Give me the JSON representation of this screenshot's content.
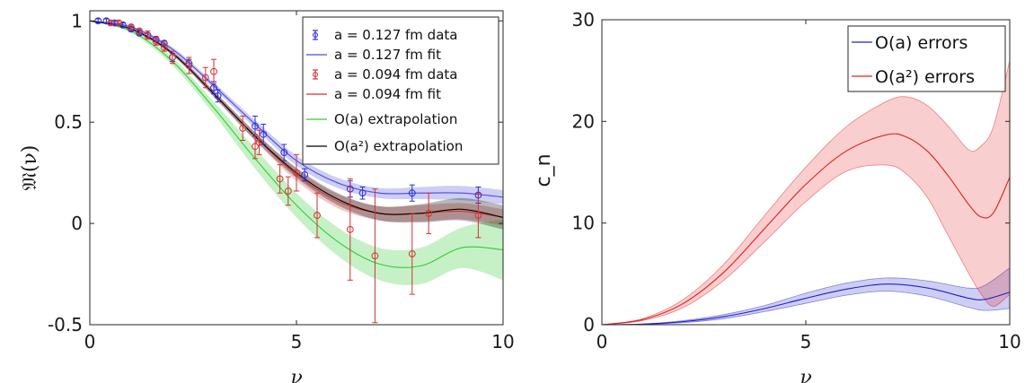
{
  "chart_data": [
    {
      "type": "line",
      "xlabel": "ν",
      "ylabel": "𝔐(ν)",
      "xlim": [
        0,
        10
      ],
      "ylim": [
        -0.5,
        1.05
      ],
      "xticks": [
        "0",
        "5",
        "10"
      ],
      "yticks": [
        "-0.5",
        "0",
        "0.5",
        "1"
      ],
      "legend_position": "top-right",
      "series": [
        {
          "name": "a = 0.127 fm data",
          "kind": "errorbar",
          "color": "#2b2bd6",
          "x": [
            0.2,
            0.4,
            0.6,
            0.8,
            1.0,
            1.2,
            1.4,
            1.6,
            1.8,
            2.0,
            2.4,
            3.0,
            3.1,
            4.0,
            4.2,
            4.7,
            5.2,
            6.3,
            6.6,
            7.8,
            9.4
          ],
          "y": [
            1.0,
            1.0,
            0.99,
            0.98,
            0.96,
            0.94,
            0.93,
            0.91,
            0.89,
            0.82,
            0.79,
            0.67,
            0.63,
            0.48,
            0.44,
            0.35,
            0.24,
            0.17,
            0.15,
            0.15,
            0.14
          ],
          "err": [
            0.01,
            0.01,
            0.01,
            0.01,
            0.01,
            0.01,
            0.01,
            0.01,
            0.01,
            0.02,
            0.02,
            0.03,
            0.03,
            0.05,
            0.05,
            0.04,
            0.03,
            0.04,
            0.03,
            0.04,
            0.04
          ]
        },
        {
          "name": "a = 0.127 fm fit",
          "kind": "band",
          "color": "#4a4ae0",
          "x": [
            0,
            1,
            2,
            3,
            4,
            5,
            6,
            7,
            8,
            9,
            10
          ],
          "y": [
            1.0,
            0.97,
            0.86,
            0.68,
            0.49,
            0.31,
            0.2,
            0.15,
            0.15,
            0.15,
            0.13
          ],
          "band": [
            0.0,
            0.005,
            0.01,
            0.015,
            0.02,
            0.025,
            0.025,
            0.025,
            0.03,
            0.035,
            0.035
          ]
        },
        {
          "name": "a = 0.094 fm data",
          "kind": "errorbar",
          "color": "#d23232",
          "x": [
            0.5,
            0.7,
            1.0,
            1.2,
            1.4,
            1.6,
            1.8,
            2.0,
            2.4,
            2.8,
            3.0,
            3.7,
            4.0,
            4.1,
            4.6,
            4.8,
            5.0,
            5.5,
            6.3,
            6.9,
            7.8,
            8.2,
            9.4
          ],
          "y": [
            0.99,
            0.99,
            0.97,
            0.95,
            0.93,
            0.9,
            0.87,
            0.82,
            0.78,
            0.72,
            0.75,
            0.47,
            0.38,
            0.4,
            0.22,
            0.16,
            0.25,
            0.04,
            -0.03,
            -0.16,
            -0.15,
            0.05,
            0.04
          ],
          "err": [
            0.01,
            0.01,
            0.01,
            0.01,
            0.02,
            0.02,
            0.02,
            0.03,
            0.04,
            0.05,
            0.06,
            0.06,
            0.06,
            0.06,
            0.07,
            0.07,
            0.09,
            0.11,
            0.25,
            0.33,
            0.2,
            0.1,
            0.11
          ]
        },
        {
          "name": "a = 0.094 fm fit",
          "kind": "band",
          "color": "#d23232",
          "x": [
            0,
            1,
            2,
            3,
            4,
            5,
            6,
            7,
            8,
            9,
            10
          ],
          "y": [
            1.0,
            0.96,
            0.84,
            0.64,
            0.43,
            0.24,
            0.11,
            0.05,
            0.05,
            0.06,
            0.03
          ],
          "band": [
            0.0,
            0.005,
            0.01,
            0.015,
            0.02,
            0.03,
            0.035,
            0.035,
            0.04,
            0.04,
            0.04
          ]
        },
        {
          "name": "O(a) extrapolation",
          "kind": "band",
          "color": "#33cc33",
          "x": [
            0,
            1,
            2,
            3,
            4,
            5,
            6,
            7,
            8,
            9,
            10
          ],
          "y": [
            1.0,
            0.95,
            0.8,
            0.57,
            0.32,
            0.09,
            -0.09,
            -0.2,
            -0.21,
            -0.12,
            -0.13
          ],
          "band": [
            0.0,
            0.01,
            0.02,
            0.03,
            0.05,
            0.06,
            0.07,
            0.08,
            0.09,
            0.1,
            0.15
          ]
        },
        {
          "name": "O(a²) extrapolation",
          "kind": "band",
          "color": "#000000",
          "x": [
            0,
            1,
            2,
            3,
            4,
            5,
            6,
            7,
            8,
            9,
            10
          ],
          "y": [
            1.0,
            0.96,
            0.84,
            0.64,
            0.43,
            0.25,
            0.12,
            0.05,
            0.05,
            0.07,
            0.03
          ],
          "band": [
            0.0,
            0.005,
            0.01,
            0.015,
            0.02,
            0.025,
            0.03,
            0.035,
            0.045,
            0.055,
            0.06
          ]
        }
      ]
    },
    {
      "type": "line",
      "xlabel": "ν",
      "ylabel": "c_n",
      "xlim": [
        0,
        10
      ],
      "ylim": [
        0,
        30
      ],
      "xticks": [
        "0",
        "5",
        "10"
      ],
      "yticks": [
        "0",
        "10",
        "20",
        "30"
      ],
      "legend_position": "top-right",
      "series": [
        {
          "name": "O(a) errors",
          "kind": "band",
          "color": "#2020c8",
          "x": [
            0,
            1,
            2,
            3,
            4,
            5,
            6,
            7,
            8,
            9,
            9.4,
            10
          ],
          "y": [
            0.0,
            0.05,
            0.3,
            0.8,
            1.6,
            2.6,
            3.5,
            4.0,
            3.6,
            2.6,
            2.5,
            3.2
          ],
          "lower": [
            0.0,
            0.03,
            0.2,
            0.6,
            1.3,
            2.1,
            2.9,
            3.3,
            2.8,
            1.7,
            1.4,
            1.6
          ],
          "upper": [
            0.0,
            0.07,
            0.4,
            1.0,
            1.9,
            3.1,
            4.1,
            4.6,
            4.3,
            3.6,
            3.9,
            5.6
          ]
        },
        {
          "name": "O(a²) errors",
          "kind": "band",
          "color": "#e02020",
          "x": [
            0,
            1,
            2,
            3,
            4,
            5,
            6,
            7,
            7.5,
            8,
            8.5,
            9,
            9.3,
            9.6,
            10
          ],
          "y": [
            0.0,
            0.5,
            2.1,
            5.2,
            9.5,
            13.8,
            17.1,
            18.7,
            18.4,
            17.0,
            14.6,
            11.8,
            10.6,
            11.0,
            14.5
          ],
          "lower": [
            0.0,
            0.4,
            1.7,
            4.4,
            8.2,
            12.1,
            15.1,
            15.7,
            14.7,
            12.4,
            8.7,
            5.0,
            3.0,
            1.8,
            3.0
          ],
          "upper": [
            0.0,
            0.6,
            2.5,
            6.0,
            10.8,
            15.5,
            19.5,
            22.0,
            22.4,
            21.5,
            19.5,
            17.2,
            17.6,
            19.5,
            26.0
          ]
        }
      ]
    }
  ]
}
